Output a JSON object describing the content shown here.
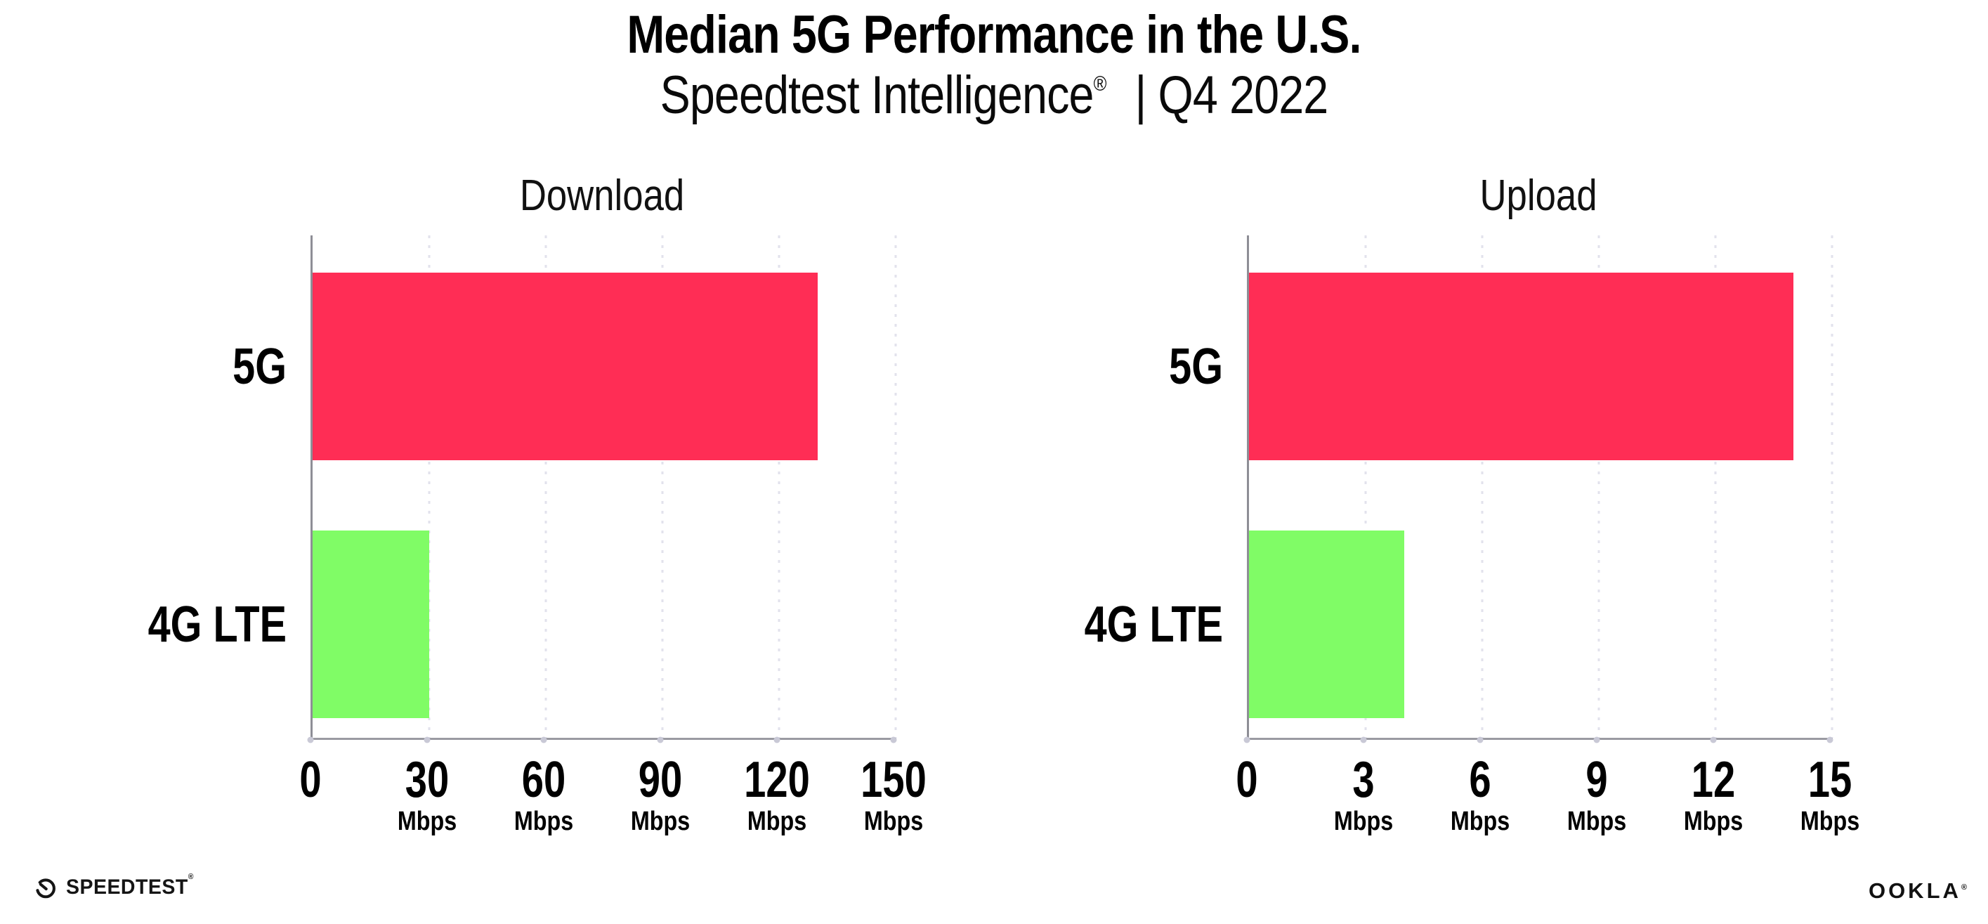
{
  "header": {
    "title": "Median 5G Performance in the U.S.",
    "subtitle_brand": "Speedtest Intelligence",
    "subtitle_registered": "®",
    "subtitle_rest": "| Q4 2022"
  },
  "footer": {
    "speedtest_wordmark": "SPEEDTEST",
    "speedtest_registered": "®",
    "ookla_wordmark": "OOKLA",
    "ookla_registered": "®"
  },
  "colors": {
    "bar_5g": "#ff2d55",
    "bar_4g_lte": "#80fc66",
    "axis": "#9a9aa2",
    "gridline": "#e2e2ec",
    "tick_dot": "#c9c9d6",
    "text": "#000000"
  },
  "chart_data": [
    {
      "type": "bar",
      "orientation": "horizontal",
      "title": "Download",
      "categories": [
        "5G",
        "4G LTE"
      ],
      "values": [
        130,
        30
      ],
      "bar_colors": [
        "#ff2d55",
        "#80fc66"
      ],
      "xlabel": "",
      "ylabel": "",
      "unit": "Mbps",
      "xlim": [
        0,
        150
      ],
      "xticks": [
        0,
        30,
        60,
        90,
        120,
        150
      ],
      "xtick_labels": [
        "0",
        "30",
        "60",
        "90",
        "120",
        "150"
      ],
      "xtick_unit_label": "Mbps",
      "grid": "vertical-dotted",
      "legend": "none"
    },
    {
      "type": "bar",
      "orientation": "horizontal",
      "title": "Upload",
      "categories": [
        "5G",
        "4G LTE"
      ],
      "values": [
        14,
        4
      ],
      "bar_colors": [
        "#ff2d55",
        "#80fc66"
      ],
      "xlabel": "",
      "ylabel": "",
      "unit": "Mbps",
      "xlim": [
        0,
        15
      ],
      "xticks": [
        0,
        3,
        6,
        9,
        12,
        15
      ],
      "xtick_labels": [
        "0",
        "3",
        "6",
        "9",
        "12",
        "15"
      ],
      "xtick_unit_label": "Mbps",
      "grid": "vertical-dotted",
      "legend": "none"
    }
  ]
}
